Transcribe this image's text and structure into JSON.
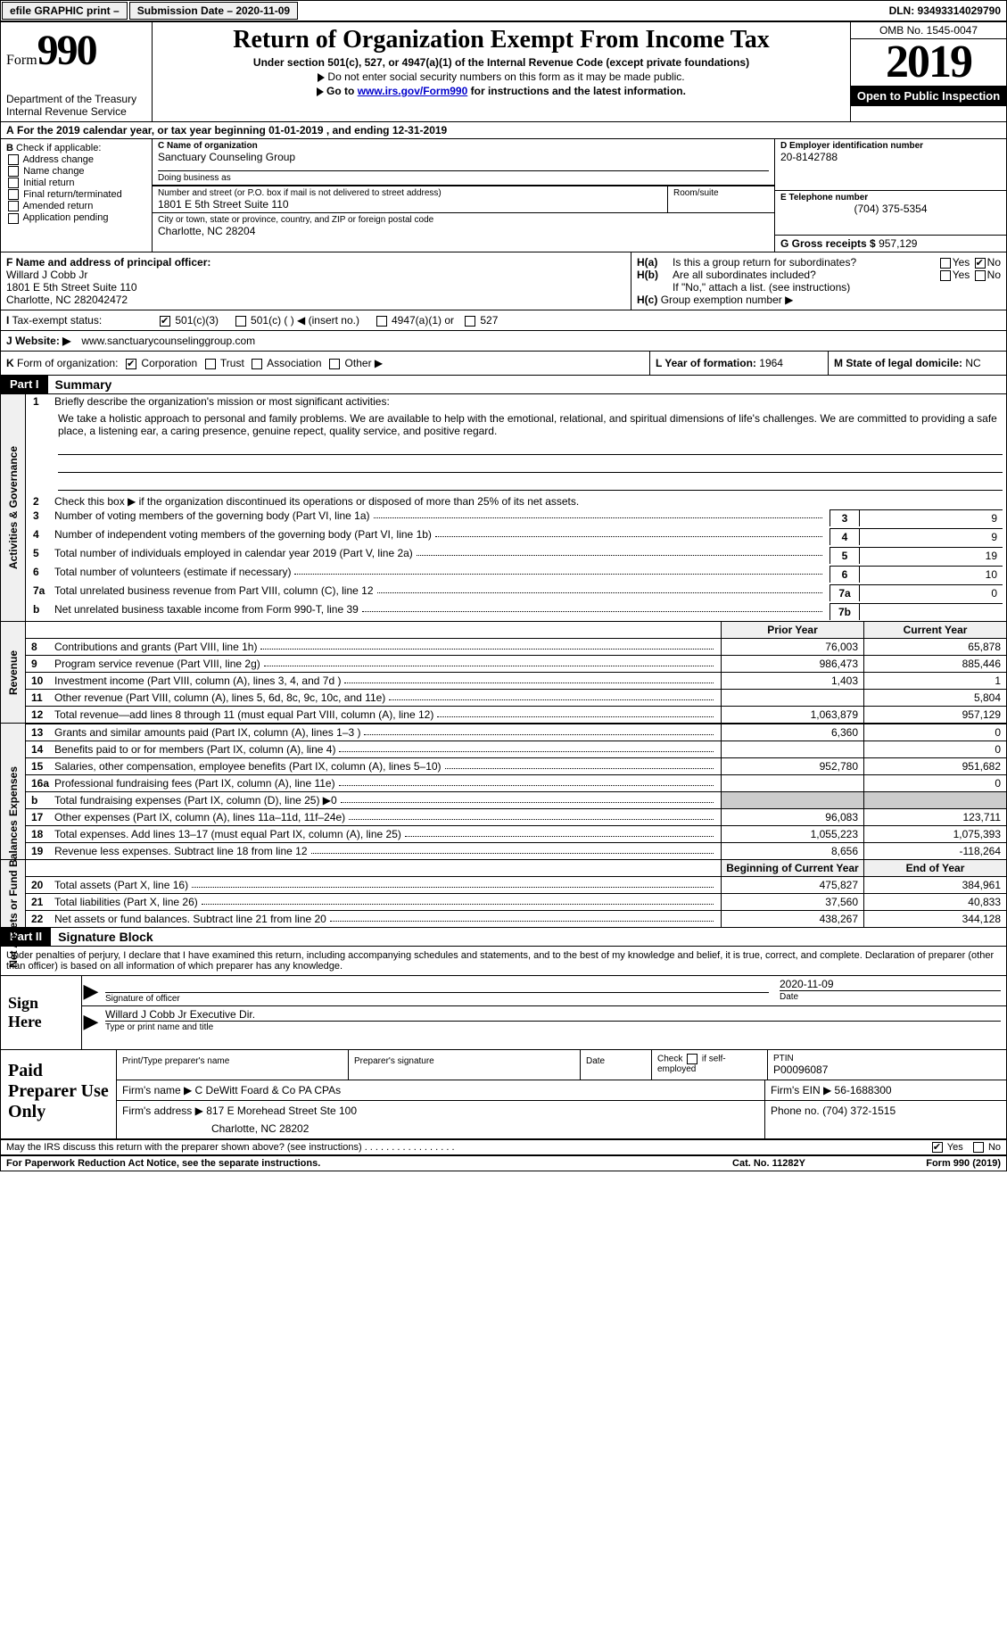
{
  "topbar": {
    "efile": "efile GRAPHIC print –",
    "submission_label": "Submission Date – 2020-11-09",
    "dln_label": "DLN: 93493314029790"
  },
  "header": {
    "form_word": "Form",
    "form_num": "990",
    "dept1": "Department of the Treasury",
    "dept2": "Internal Revenue Service",
    "title": "Return of Organization Exempt From Income Tax",
    "subtitle": "Under section 501(c), 527, or 4947(a)(1) of the Internal Revenue Code (except private foundations)",
    "note1": "Do not enter social security numbers on this form as it may be made public.",
    "note2_a": "Go to ",
    "note2_link": "www.irs.gov/Form990",
    "note2_b": " for instructions and the latest information.",
    "omb": "OMB No. 1545-0047",
    "year": "2019",
    "inspection": "Open to Public Inspection"
  },
  "A": {
    "text": "For the 2019 calendar year, or tax year beginning 01-01-2019    , and ending 12-31-2019"
  },
  "B": {
    "label": "Check if applicable:",
    "opts": [
      "Address change",
      "Name change",
      "Initial return",
      "Final return/terminated",
      "Amended return",
      "Application pending"
    ]
  },
  "C": {
    "name_label": "C Name of organization",
    "name": "Sanctuary Counseling Group",
    "dba_label": "Doing business as",
    "dba": "",
    "street_label": "Number and street (or P.O. box if mail is not delivered to street address)",
    "street": "1801 E 5th Street Suite 110",
    "suite_label": "Room/suite",
    "suite": "",
    "city_label": "City or town, state or province, country, and ZIP or foreign postal code",
    "city": "Charlotte, NC  28204"
  },
  "D": {
    "label": "D Employer identification number",
    "val": "20-8142788"
  },
  "E": {
    "label": "E Telephone number",
    "val": "(704) 375-5354"
  },
  "G": {
    "label": "G Gross receipts $",
    "val": "957,129"
  },
  "F": {
    "label": "F  Name and address of principal officer:",
    "name": "Willard J Cobb Jr",
    "addr1": "1801 E 5th Street Suite 110",
    "addr2": "Charlotte, NC  282042472"
  },
  "H": {
    "a": "Is this a group return for subordinates?",
    "b": "Are all subordinates included?",
    "b_note": "If \"No,\" attach a list. (see instructions)",
    "c": "Group exemption number ▶",
    "yes": "Yes",
    "no": "No"
  },
  "I": {
    "label": "Tax-exempt status:",
    "o1": "501(c)(3)",
    "o2": "501(c) (  ) ◀ (insert no.)",
    "o3": "4947(a)(1) or",
    "o4": "527"
  },
  "J": {
    "label": "Website: ▶",
    "val": "www.sanctuarycounselinggroup.com"
  },
  "K": {
    "label": "Form of organization:",
    "o1": "Corporation",
    "o2": "Trust",
    "o3": "Association",
    "o4": "Other ▶"
  },
  "L": {
    "label": "L Year of formation:",
    "val": "1964"
  },
  "M": {
    "label": "M State of legal domicile:",
    "val": "NC"
  },
  "partI": {
    "tab": "Part I",
    "title": "Summary"
  },
  "summary": {
    "q1_label": "Briefly describe the organization's mission or most significant activities:",
    "q1_text": "We take a holistic approach to personal and family problems. We are available to help with the emotional, relational, and spiritual dimensions of life's challenges. We are committed to providing a safe place, a listening ear, a caring presence, genuine repect, quality service, and positive regard.",
    "q2": "Check this box ▶       if the organization discontinued its operations or disposed of more than 25% of its net assets.",
    "lines_single": [
      {
        "n": "3",
        "d": "Number of voting members of the governing body (Part VI, line 1a)",
        "v": "9"
      },
      {
        "n": "4",
        "d": "Number of independent voting members of the governing body (Part VI, line 1b)",
        "v": "9"
      },
      {
        "n": "5",
        "d": "Total number of individuals employed in calendar year 2019 (Part V, line 2a)",
        "v": "19"
      },
      {
        "n": "6",
        "d": "Total number of volunteers (estimate if necessary)",
        "v": "10"
      },
      {
        "n": "7a",
        "d": "Total unrelated business revenue from Part VIII, column (C), line 12",
        "v": "0"
      },
      {
        "n": "b",
        "d": "Net unrelated business taxable income from Form 990-T, line 39",
        "v": ""
      }
    ],
    "hdr_prior": "Prior Year",
    "hdr_curr": "Current Year",
    "revenue": [
      {
        "n": "8",
        "d": "Contributions and grants (Part VIII, line 1h)",
        "p": "76,003",
        "c": "65,878"
      },
      {
        "n": "9",
        "d": "Program service revenue (Part VIII, line 2g)",
        "p": "986,473",
        "c": "885,446"
      },
      {
        "n": "10",
        "d": "Investment income (Part VIII, column (A), lines 3, 4, and 7d )",
        "p": "1,403",
        "c": "1"
      },
      {
        "n": "11",
        "d": "Other revenue (Part VIII, column (A), lines 5, 6d, 8c, 9c, 10c, and 11e)",
        "p": "",
        "c": "5,804"
      },
      {
        "n": "12",
        "d": "Total revenue—add lines 8 through 11 (must equal Part VIII, column (A), line 12)",
        "p": "1,063,879",
        "c": "957,129"
      }
    ],
    "expenses": [
      {
        "n": "13",
        "d": "Grants and similar amounts paid (Part IX, column (A), lines 1–3 )",
        "p": "6,360",
        "c": "0"
      },
      {
        "n": "14",
        "d": "Benefits paid to or for members (Part IX, column (A), line 4)",
        "p": "",
        "c": "0"
      },
      {
        "n": "15",
        "d": "Salaries, other compensation, employee benefits (Part IX, column (A), lines 5–10)",
        "p": "952,780",
        "c": "951,682"
      },
      {
        "n": "16a",
        "d": "Professional fundraising fees (Part IX, column (A), line 11e)",
        "p": "",
        "c": "0"
      },
      {
        "n": "b",
        "d": "Total fundraising expenses (Part IX, column (D), line 25) ▶0",
        "p": "SHADE",
        "c": "SHADE"
      },
      {
        "n": "17",
        "d": "Other expenses (Part IX, column (A), lines 11a–11d, 11f–24e)",
        "p": "96,083",
        "c": "123,711"
      },
      {
        "n": "18",
        "d": "Total expenses. Add lines 13–17 (must equal Part IX, column (A), line 25)",
        "p": "1,055,223",
        "c": "1,075,393"
      },
      {
        "n": "19",
        "d": "Revenue less expenses. Subtract line 18 from line 12",
        "p": "8,656",
        "c": "-118,264"
      }
    ],
    "hdr_begin": "Beginning of Current Year",
    "hdr_end": "End of Year",
    "netassets": [
      {
        "n": "20",
        "d": "Total assets (Part X, line 16)",
        "p": "475,827",
        "c": "384,961"
      },
      {
        "n": "21",
        "d": "Total liabilities (Part X, line 26)",
        "p": "37,560",
        "c": "40,833"
      },
      {
        "n": "22",
        "d": "Net assets or fund balances. Subtract line 21 from line 20",
        "p": "438,267",
        "c": "344,128"
      }
    ],
    "vlab_ag": "Activities & Governance",
    "vlab_rev": "Revenue",
    "vlab_exp": "Expenses",
    "vlab_na": "Net Assets or Fund Balances"
  },
  "partII": {
    "tab": "Part II",
    "title": "Signature Block"
  },
  "sig": {
    "perjury": "Under penalties of perjury, I declare that I have examined this return, including accompanying schedules and statements, and to the best of my knowledge and belief, it is true, correct, and complete. Declaration of preparer (other than officer) is based on all information of which preparer has any knowledge.",
    "sign_here": "Sign Here",
    "sig_of_officer": "Signature of officer",
    "date_label": "Date",
    "date_val": "2020-11-09",
    "officer_name": "Willard J Cobb Jr  Executive Dir.",
    "officer_sub": "Type or print name and title"
  },
  "prep": {
    "label": "Paid Preparer Use Only",
    "h1": "Print/Type preparer's name",
    "h2": "Preparer's signature",
    "h3": "Date",
    "h4a": "Check",
    "h4b": "if self-employed",
    "h5": "PTIN",
    "ptin": "P00096087",
    "firm_name_lab": "Firm's name   ▶",
    "firm_name": "C DeWitt Foard & Co PA CPAs",
    "firm_ein_lab": "Firm's EIN ▶",
    "firm_ein": "56-1688300",
    "firm_addr_lab": "Firm's address ▶",
    "firm_addr1": "817 E Morehead Street Ste 100",
    "firm_addr2": "Charlotte, NC  28202",
    "phone_lab": "Phone no.",
    "phone": "(704) 372-1515"
  },
  "footer": {
    "discuss": "May the IRS discuss this return with the preparer shown above? (see instructions)",
    "yes": "Yes",
    "no": "No",
    "paperwork": "For Paperwork Reduction Act Notice, see the separate instructions.",
    "cat": "Cat. No. 11282Y",
    "formref": "Form 990 (2019)"
  },
  "colors": {
    "black": "#000000",
    "link": "#0000cc",
    "shade": "#cccccc",
    "lightshade": "#f0f0f0"
  }
}
